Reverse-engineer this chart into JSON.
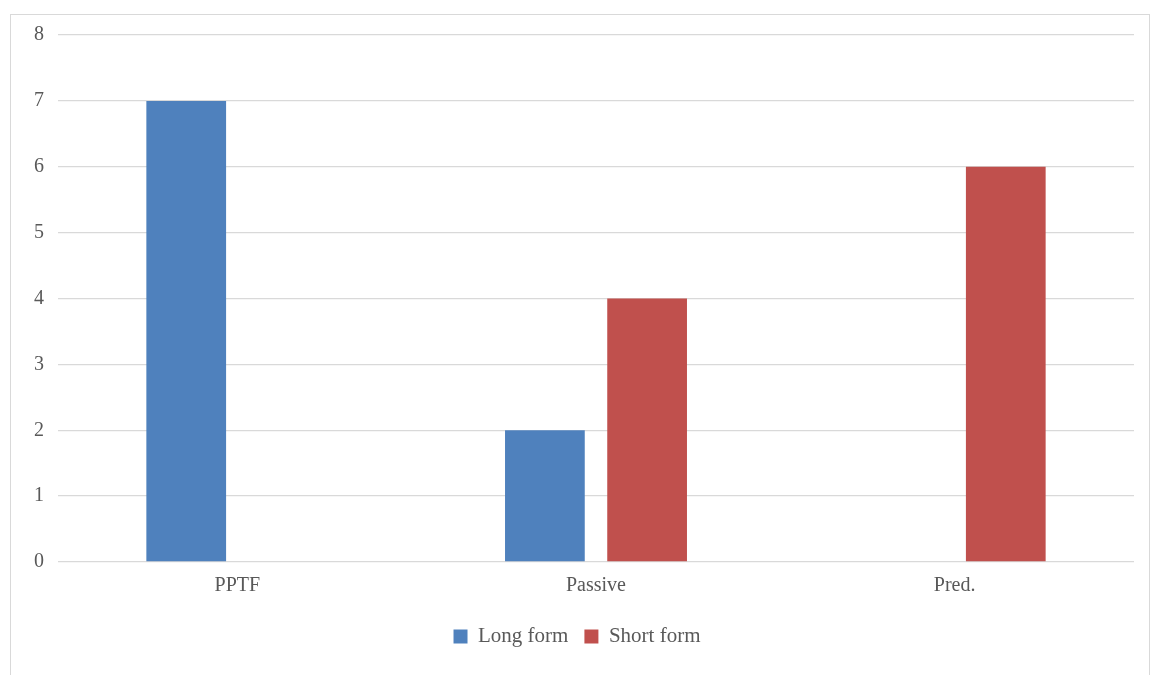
{
  "chart_data": {
    "type": "bar",
    "categories": [
      "PPTF",
      "Passive",
      "Pred."
    ],
    "series": [
      {
        "name": "Long form",
        "color": "#4f81bd",
        "values": [
          7,
          2,
          0
        ]
      },
      {
        "name": "Short form",
        "color": "#c0504d",
        "values": [
          0,
          4,
          6
        ]
      }
    ],
    "ylim": [
      0,
      8
    ],
    "yticks": [
      0,
      1,
      2,
      3,
      4,
      5,
      6,
      7,
      8
    ],
    "grid": "y",
    "legend": "bottom"
  }
}
